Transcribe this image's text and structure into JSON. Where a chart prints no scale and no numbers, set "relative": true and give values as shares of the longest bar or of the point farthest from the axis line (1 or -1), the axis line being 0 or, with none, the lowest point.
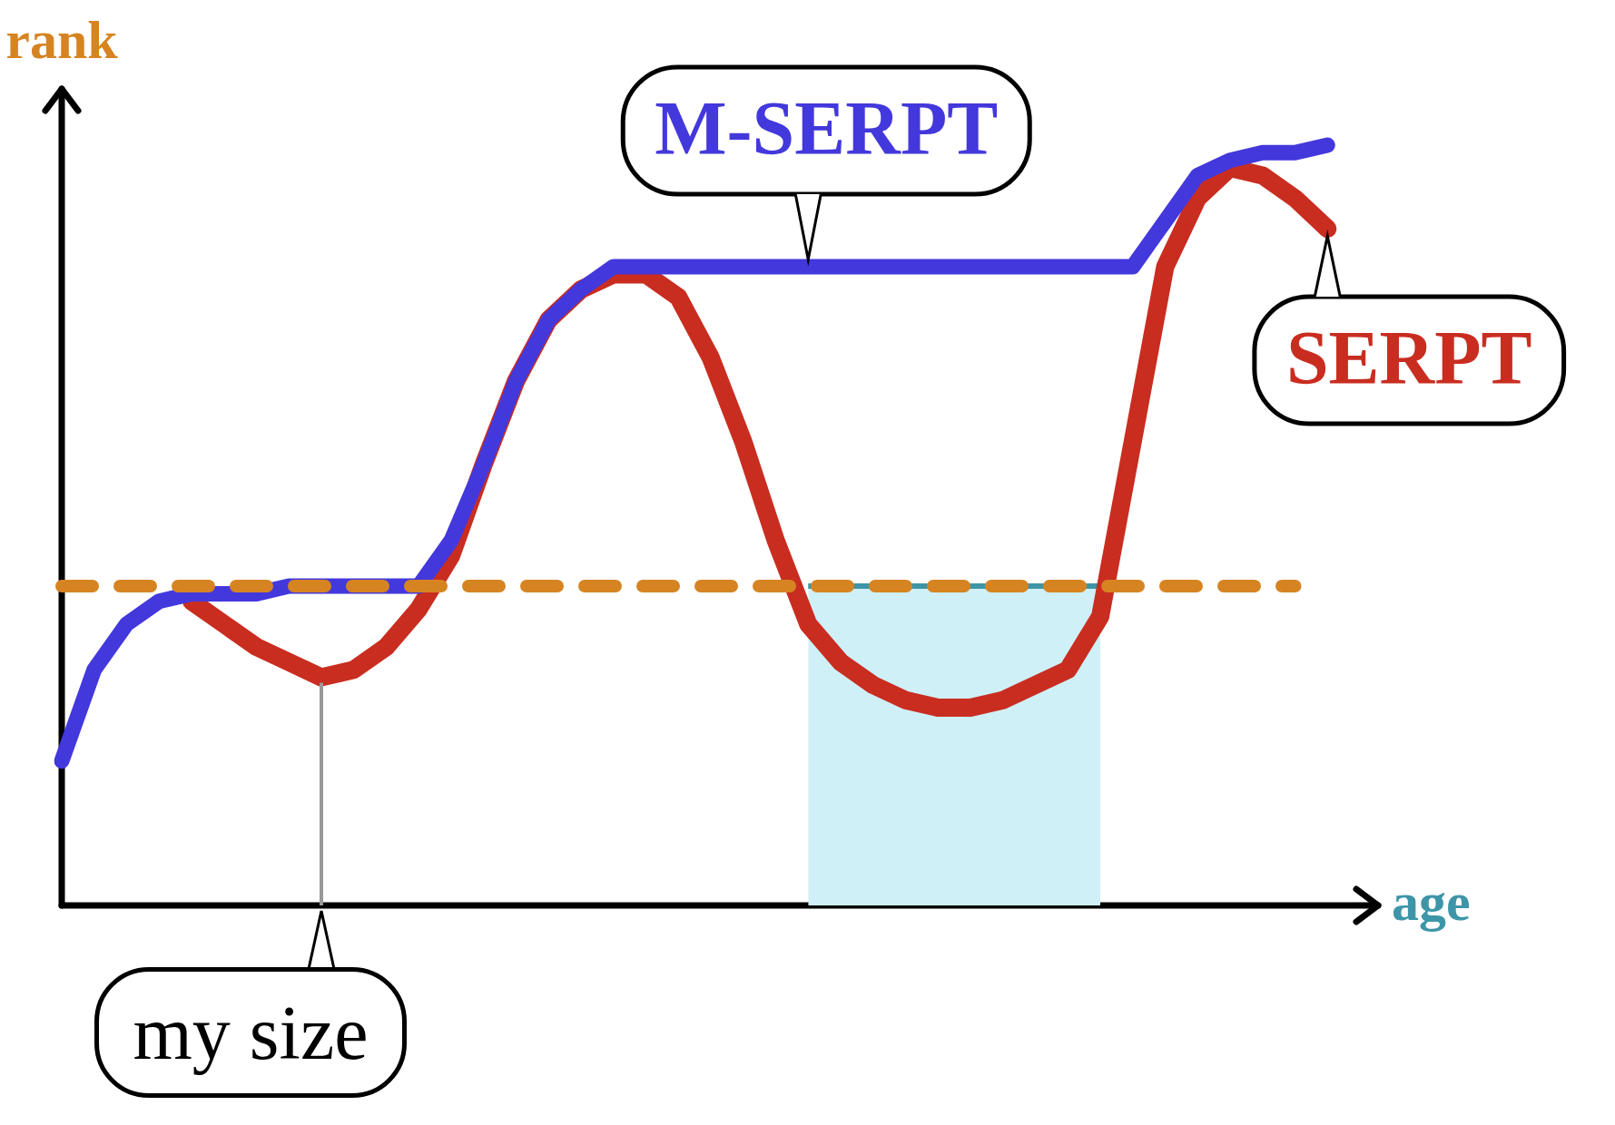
{
  "chart_data": {
    "type": "line",
    "relative": true,
    "xlabel": "age",
    "ylabel": "rank",
    "legend": false,
    "marker": "none",
    "categories": [
      null,
      null,
      null,
      null,
      null,
      null,
      null,
      null,
      null,
      null,
      null,
      null,
      null,
      null,
      null,
      null,
      null,
      null,
      null,
      null,
      null,
      null,
      null,
      null,
      null,
      null,
      null,
      null,
      null,
      null,
      null,
      null,
      null,
      null,
      null,
      null,
      null,
      null,
      null,
      null,
      null
    ],
    "series": [
      {
        "type": "area",
        "color": "#cff0f7",
        "values": [
          null,
          null,
          null,
          null,
          null,
          null,
          null,
          null,
          null,
          null,
          null,
          null,
          null,
          null,
          null,
          null,
          null,
          null,
          null,
          null,
          null,
          null,
          null,
          0.42,
          0.42,
          0.42,
          0.42,
          0.42,
          0.42,
          0.42,
          0.42,
          0.42,
          0.42,
          null,
          null,
          null,
          null,
          null,
          null,
          null,
          null
        ]
      },
      {
        "name": "SERPT",
        "color": "#c92d20",
        "values": [
          null,
          null,
          null,
          null,
          0.4,
          0.37,
          0.34,
          0.32,
          0.3,
          0.31,
          0.34,
          0.39,
          0.46,
          0.58,
          0.69,
          0.77,
          0.81,
          0.83,
          0.83,
          0.8,
          0.72,
          0.61,
          0.48,
          0.37,
          0.32,
          0.29,
          0.27,
          0.26,
          0.26,
          0.27,
          0.29,
          0.31,
          0.38,
          0.61,
          0.84,
          0.93,
          0.97,
          0.96,
          0.93,
          0.89,
          null
        ]
      },
      {
        "name": "M-SERPT",
        "color": "#4338dc",
        "values": [
          0.19,
          0.31,
          0.37,
          0.4,
          0.41,
          0.41,
          0.41,
          0.42,
          0.42,
          0.42,
          0.42,
          0.42,
          0.48,
          0.58,
          0.69,
          0.77,
          0.81,
          0.84,
          0.84,
          0.84,
          0.84,
          0.84,
          0.84,
          0.84,
          0.84,
          0.84,
          0.84,
          0.84,
          0.84,
          0.84,
          0.84,
          0.84,
          0.84,
          0.84,
          0.9,
          0.96,
          0.98,
          0.99,
          0.99,
          1.0,
          null
        ]
      },
      {
        "type": "line",
        "line_style": "dashed",
        "color": "#d68422",
        "values": [
          0.42,
          0.42,
          0.42,
          0.42,
          0.42,
          0.42,
          0.42,
          0.42,
          0.42,
          0.42,
          0.42,
          0.42,
          0.42,
          0.42,
          0.42,
          0.42,
          0.42,
          0.42,
          0.42,
          0.42,
          0.42,
          0.42,
          0.42,
          0.42,
          0.42,
          0.42,
          0.42,
          0.42,
          0.42,
          0.42,
          0.42,
          0.42,
          0.42,
          0.42,
          0.42,
          0.42,
          0.42,
          0.42,
          0.42,
          null,
          null
        ]
      }
    ],
    "annotations": [
      "my size"
    ]
  }
}
